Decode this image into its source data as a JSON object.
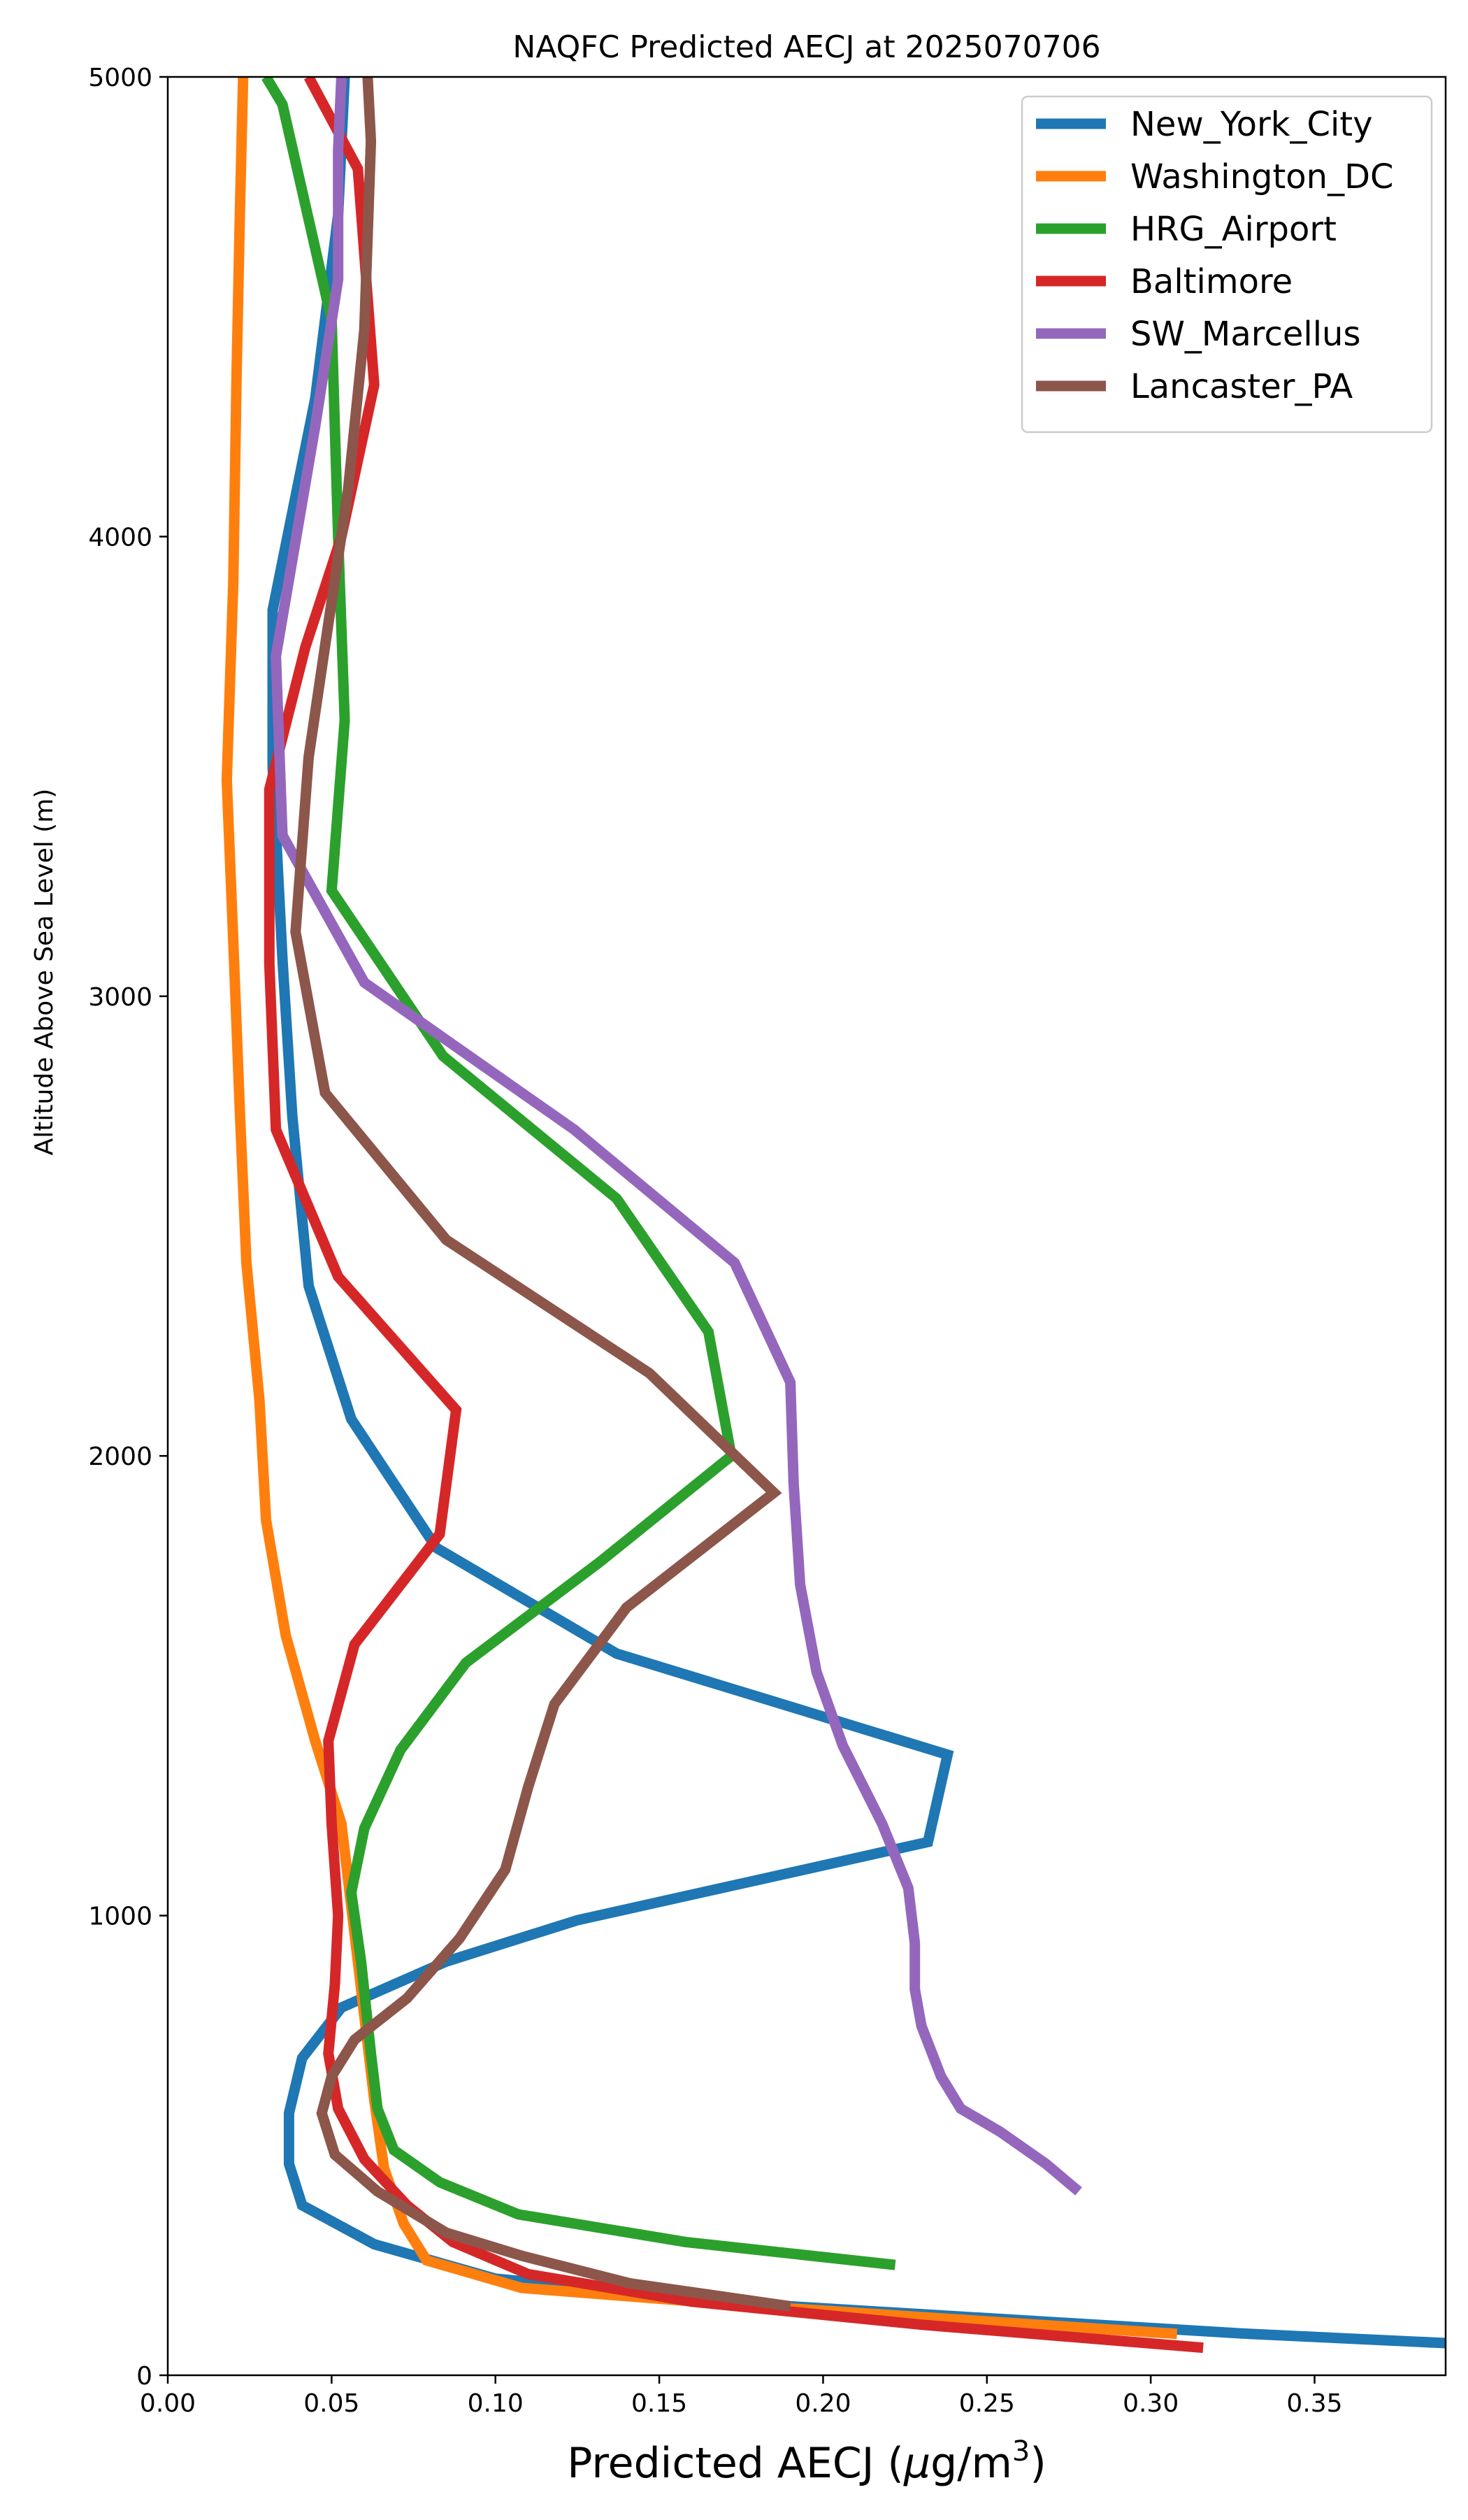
{
  "chart_data": {
    "type": "line",
    "title": "NAQFC Predicted AECJ at 2025070706",
    "xlabel": "Predicted AECJ (μg/m³)",
    "ylabel": "Altitude Above Sea Level (m)",
    "xlim": [
      0.0,
      0.39
    ],
    "ylim": [
      0,
      5000
    ],
    "x_ticks": [
      "0.00",
      "0.05",
      "0.10",
      "0.15",
      "0.20",
      "0.25",
      "0.30",
      "0.35"
    ],
    "x_tick_values": [
      0.0,
      0.05,
      0.1,
      0.15,
      0.2,
      0.25,
      0.3,
      0.35
    ],
    "y_ticks": [
      "0",
      "1000",
      "2000",
      "3000",
      "4000",
      "5000"
    ],
    "y_tick_values": [
      0,
      1000,
      2000,
      3000,
      4000,
      5000
    ],
    "grid": false,
    "legend_position": "top-right",
    "series": [
      {
        "name": "New_York_City",
        "color": "#1f77b4",
        "points": [
          [
            0.39,
            70
          ],
          [
            0.33,
            90
          ],
          [
            0.19,
            150
          ],
          [
            0.1,
            210
          ],
          [
            0.063,
            285
          ],
          [
            0.041,
            370
          ],
          [
            0.037,
            460
          ],
          [
            0.037,
            570
          ],
          [
            0.041,
            690
          ],
          [
            0.053,
            800
          ],
          [
            0.085,
            900
          ],
          [
            0.125,
            990
          ],
          [
            0.232,
            1160
          ],
          [
            0.238,
            1350
          ],
          [
            0.137,
            1570
          ],
          [
            0.082,
            1800
          ],
          [
            0.056,
            2080
          ],
          [
            0.043,
            2370
          ],
          [
            0.038,
            2740
          ],
          [
            0.035,
            3080
          ],
          [
            0.032,
            3500
          ],
          [
            0.032,
            3840
          ],
          [
            0.045,
            4300
          ],
          [
            0.052,
            4700
          ],
          [
            0.054,
            5000
          ]
        ]
      },
      {
        "name": "Washington_DC",
        "color": "#ff7f0e",
        "points": [
          [
            0.308,
            90
          ],
          [
            0.18,
            150
          ],
          [
            0.108,
            190
          ],
          [
            0.079,
            250
          ],
          [
            0.072,
            330
          ],
          [
            0.066,
            450
          ],
          [
            0.063,
            600
          ],
          [
            0.058,
            900
          ],
          [
            0.053,
            1200
          ],
          [
            0.045,
            1380
          ],
          [
            0.036,
            1610
          ],
          [
            0.03,
            1860
          ],
          [
            0.028,
            2120
          ],
          [
            0.024,
            2420
          ],
          [
            0.022,
            2750
          ],
          [
            0.02,
            3120
          ],
          [
            0.018,
            3470
          ],
          [
            0.02,
            3900
          ],
          [
            0.021,
            4350
          ],
          [
            0.022,
            4700
          ],
          [
            0.023,
            5000
          ]
        ]
      },
      {
        "name": "HRG_Airport",
        "color": "#2ca02c",
        "points": [
          [
            0.222,
            240
          ],
          [
            0.158,
            290
          ],
          [
            0.107,
            350
          ],
          [
            0.083,
            420
          ],
          [
            0.069,
            490
          ],
          [
            0.064,
            580
          ],
          [
            0.062,
            700
          ],
          [
            0.059,
            900
          ],
          [
            0.056,
            1050
          ],
          [
            0.06,
            1190
          ],
          [
            0.071,
            1360
          ],
          [
            0.091,
            1550
          ],
          [
            0.132,
            1770
          ],
          [
            0.172,
            2000
          ],
          [
            0.165,
            2270
          ],
          [
            0.137,
            2560
          ],
          [
            0.084,
            2870
          ],
          [
            0.05,
            3230
          ],
          [
            0.054,
            3600
          ],
          [
            0.052,
            4000
          ],
          [
            0.05,
            4470
          ],
          [
            0.035,
            4940
          ],
          [
            0.03,
            5000
          ]
        ]
      },
      {
        "name": "Baltimore",
        "color": "#d62728",
        "points": [
          [
            0.316,
            60
          ],
          [
            0.23,
            110
          ],
          [
            0.16,
            160
          ],
          [
            0.11,
            220
          ],
          [
            0.087,
            290
          ],
          [
            0.073,
            370
          ],
          [
            0.06,
            470
          ],
          [
            0.052,
            580
          ],
          [
            0.049,
            700
          ],
          [
            0.051,
            850
          ],
          [
            0.052,
            1000
          ],
          [
            0.05,
            1200
          ],
          [
            0.049,
            1380
          ],
          [
            0.057,
            1590
          ],
          [
            0.083,
            1830
          ],
          [
            0.088,
            2100
          ],
          [
            0.052,
            2390
          ],
          [
            0.033,
            2710
          ],
          [
            0.031,
            3070
          ],
          [
            0.031,
            3450
          ],
          [
            0.042,
            3760
          ],
          [
            0.053,
            4000
          ],
          [
            0.063,
            4330
          ],
          [
            0.058,
            4800
          ],
          [
            0.043,
            5000
          ]
        ]
      },
      {
        "name": "SW_Marcellus",
        "color": "#9467bd",
        "points": [
          [
            0.278,
            400
          ],
          [
            0.268,
            460
          ],
          [
            0.254,
            530
          ],
          [
            0.242,
            580
          ],
          [
            0.236,
            650
          ],
          [
            0.23,
            760
          ],
          [
            0.228,
            840
          ],
          [
            0.228,
            940
          ],
          [
            0.226,
            1060
          ],
          [
            0.218,
            1200
          ],
          [
            0.206,
            1370
          ],
          [
            0.198,
            1530
          ],
          [
            0.193,
            1720
          ],
          [
            0.191,
            1940
          ],
          [
            0.19,
            2160
          ],
          [
            0.173,
            2420
          ],
          [
            0.124,
            2710
          ],
          [
            0.06,
            3030
          ],
          [
            0.035,
            3350
          ],
          [
            0.033,
            3740
          ],
          [
            0.045,
            4240
          ],
          [
            0.052,
            4560
          ],
          [
            0.052,
            4840
          ],
          [
            0.053,
            5000
          ]
        ]
      },
      {
        "name": "Lancaster_PA",
        "color": "#8c564b",
        "points": [
          [
            0.19,
            150
          ],
          [
            0.141,
            200
          ],
          [
            0.108,
            260
          ],
          [
            0.085,
            310
          ],
          [
            0.064,
            400
          ],
          [
            0.051,
            480
          ],
          [
            0.047,
            570
          ],
          [
            0.05,
            650
          ],
          [
            0.057,
            730
          ],
          [
            0.073,
            820
          ],
          [
            0.089,
            950
          ],
          [
            0.103,
            1100
          ],
          [
            0.11,
            1280
          ],
          [
            0.118,
            1460
          ],
          [
            0.14,
            1670
          ],
          [
            0.185,
            1920
          ],
          [
            0.147,
            2180
          ],
          [
            0.085,
            2470
          ],
          [
            0.048,
            2790
          ],
          [
            0.039,
            3140
          ],
          [
            0.043,
            3520
          ],
          [
            0.055,
            4100
          ],
          [
            0.06,
            4450
          ],
          [
            0.062,
            4860
          ],
          [
            0.061,
            5000
          ]
        ]
      }
    ]
  }
}
